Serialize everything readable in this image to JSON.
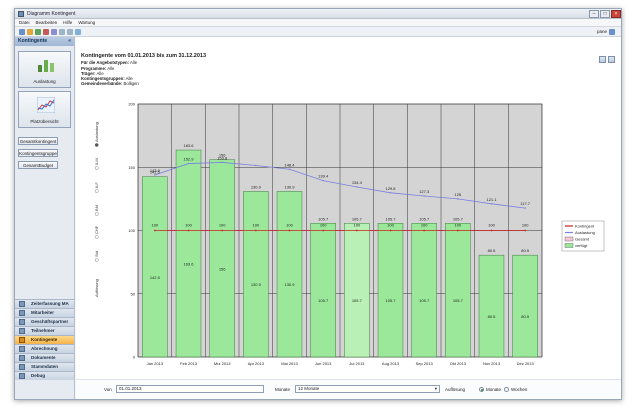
{
  "window": {
    "title": "Diagramm Kontingent"
  },
  "menu": [
    "Datei",
    "Bearbeiten",
    "Hilfe",
    "Wartung"
  ],
  "toolbar": {
    "field_label": "pane"
  },
  "sidebar": {
    "header": "Kontingente",
    "big_buttons": [
      {
        "label": "Auslastung"
      },
      {
        "label": "Platzübersicht"
      }
    ],
    "small_buttons": [
      {
        "label": "Gesamtkontingent"
      },
      {
        "label": "Kontingentsgruppe"
      },
      {
        "label": "GesamtBudget"
      }
    ],
    "nav": [
      {
        "label": "Zeiterfassung MA",
        "active": false
      },
      {
        "label": "Mitarbeiter",
        "active": false
      },
      {
        "label": "Geschäftspartner",
        "active": false
      },
      {
        "label": "Teilnehmer",
        "active": false
      },
      {
        "label": "Kontingente",
        "active": true
      },
      {
        "label": "Abrechnung",
        "active": false
      },
      {
        "label": "Dokumente",
        "active": false
      },
      {
        "label": "Stammdaten",
        "active": false
      },
      {
        "label": "Debug",
        "active": false
      }
    ]
  },
  "header": {
    "title": "Kontingente vom 01.01.2013 bis zum 31.12.2013",
    "rows": [
      {
        "label": "Für die Angebotstypen:",
        "value": "Alle"
      },
      {
        "label": "Programme:",
        "value": "Alle"
      },
      {
        "label": "Träger:",
        "value": "Alle"
      },
      {
        "label": "Kontingentsgruppen:",
        "value": "Alle"
      },
      {
        "label": "Gemeindeverbände:",
        "value": "Bolligen"
      }
    ]
  },
  "side_controls": {
    "axis_title": "Auflösung",
    "options": [
      "Auslastung",
      "ILM",
      "ILF",
      "BM",
      "CHF",
      "Std"
    ]
  },
  "chart_data": {
    "type": "bar",
    "categories": [
      "Jan 2013",
      "Feb 2013",
      "Mrz 2013",
      "Apr 2013",
      "Mai 2013",
      "Jun 2013",
      "Jul 2013",
      "Aug 2013",
      "Sep 2013",
      "Okt 2013",
      "Nov 2013",
      "Dez 2013"
    ],
    "ylim": [
      0,
      200
    ],
    "yticks": [
      "0",
      "50",
      "100",
      "150",
      "200"
    ],
    "grid": true,
    "series": [
      {
        "name": "Gesamt",
        "values": [
          142.5,
          163.6,
          156,
          130.9,
          130.9,
          105.7,
          105.7,
          105.7,
          105.7,
          105.7,
          80.5,
          80.5
        ],
        "color": "#9be89b"
      },
      {
        "name": "Kontingent",
        "values": [
          100,
          100,
          100,
          100,
          100,
          100,
          100,
          100,
          100,
          100,
          100,
          100
        ],
        "color": "#cc2222"
      },
      {
        "name": "Auslastung",
        "values": [
          143.9,
          152.9,
          153.8,
          151.4,
          148.4,
          139.4,
          134.4,
          129.8,
          127.3,
          125,
          121.1,
          117.7
        ],
        "color": "#7b7fe0"
      }
    ],
    "bar_labels": [
      "142.5",
      "163.6",
      "156",
      "130.9",
      "130.9",
      "105.7",
      "105.7",
      "105.7",
      "105.7",
      "105.7",
      "80.5",
      "80.5"
    ],
    "kontingent_labels": [
      "100",
      "100",
      "100",
      "100",
      "100",
      "100",
      "100",
      "100",
      "100",
      "100",
      "100",
      "100"
    ],
    "auslastung_labels": [
      "143.9",
      "152.9",
      "153.8",
      "",
      "148.4",
      "139.4",
      "134.4",
      "129.8",
      "127.3",
      "125",
      "121.1",
      "117.7"
    ],
    "legend": {
      "placement": "right",
      "items": [
        {
          "label": "Kontingent",
          "color": "#cc2222",
          "kind": "line"
        },
        {
          "label": "Auslastung",
          "color": "#7b7fe0",
          "kind": "line"
        },
        {
          "label": "Gesamt",
          "color": "#f4c6d6",
          "kind": "box"
        },
        {
          "label": "verfügt",
          "color": "#9be89b",
          "kind": "box"
        }
      ]
    }
  },
  "footer": {
    "von_label": "Von",
    "von_value": "01.01.2013",
    "monate_label": "Monate",
    "monate_value": "12 Monate",
    "aufloesung_label": "Auflösung",
    "opt_monate": "Monate",
    "opt_wochen": "Wochen"
  }
}
